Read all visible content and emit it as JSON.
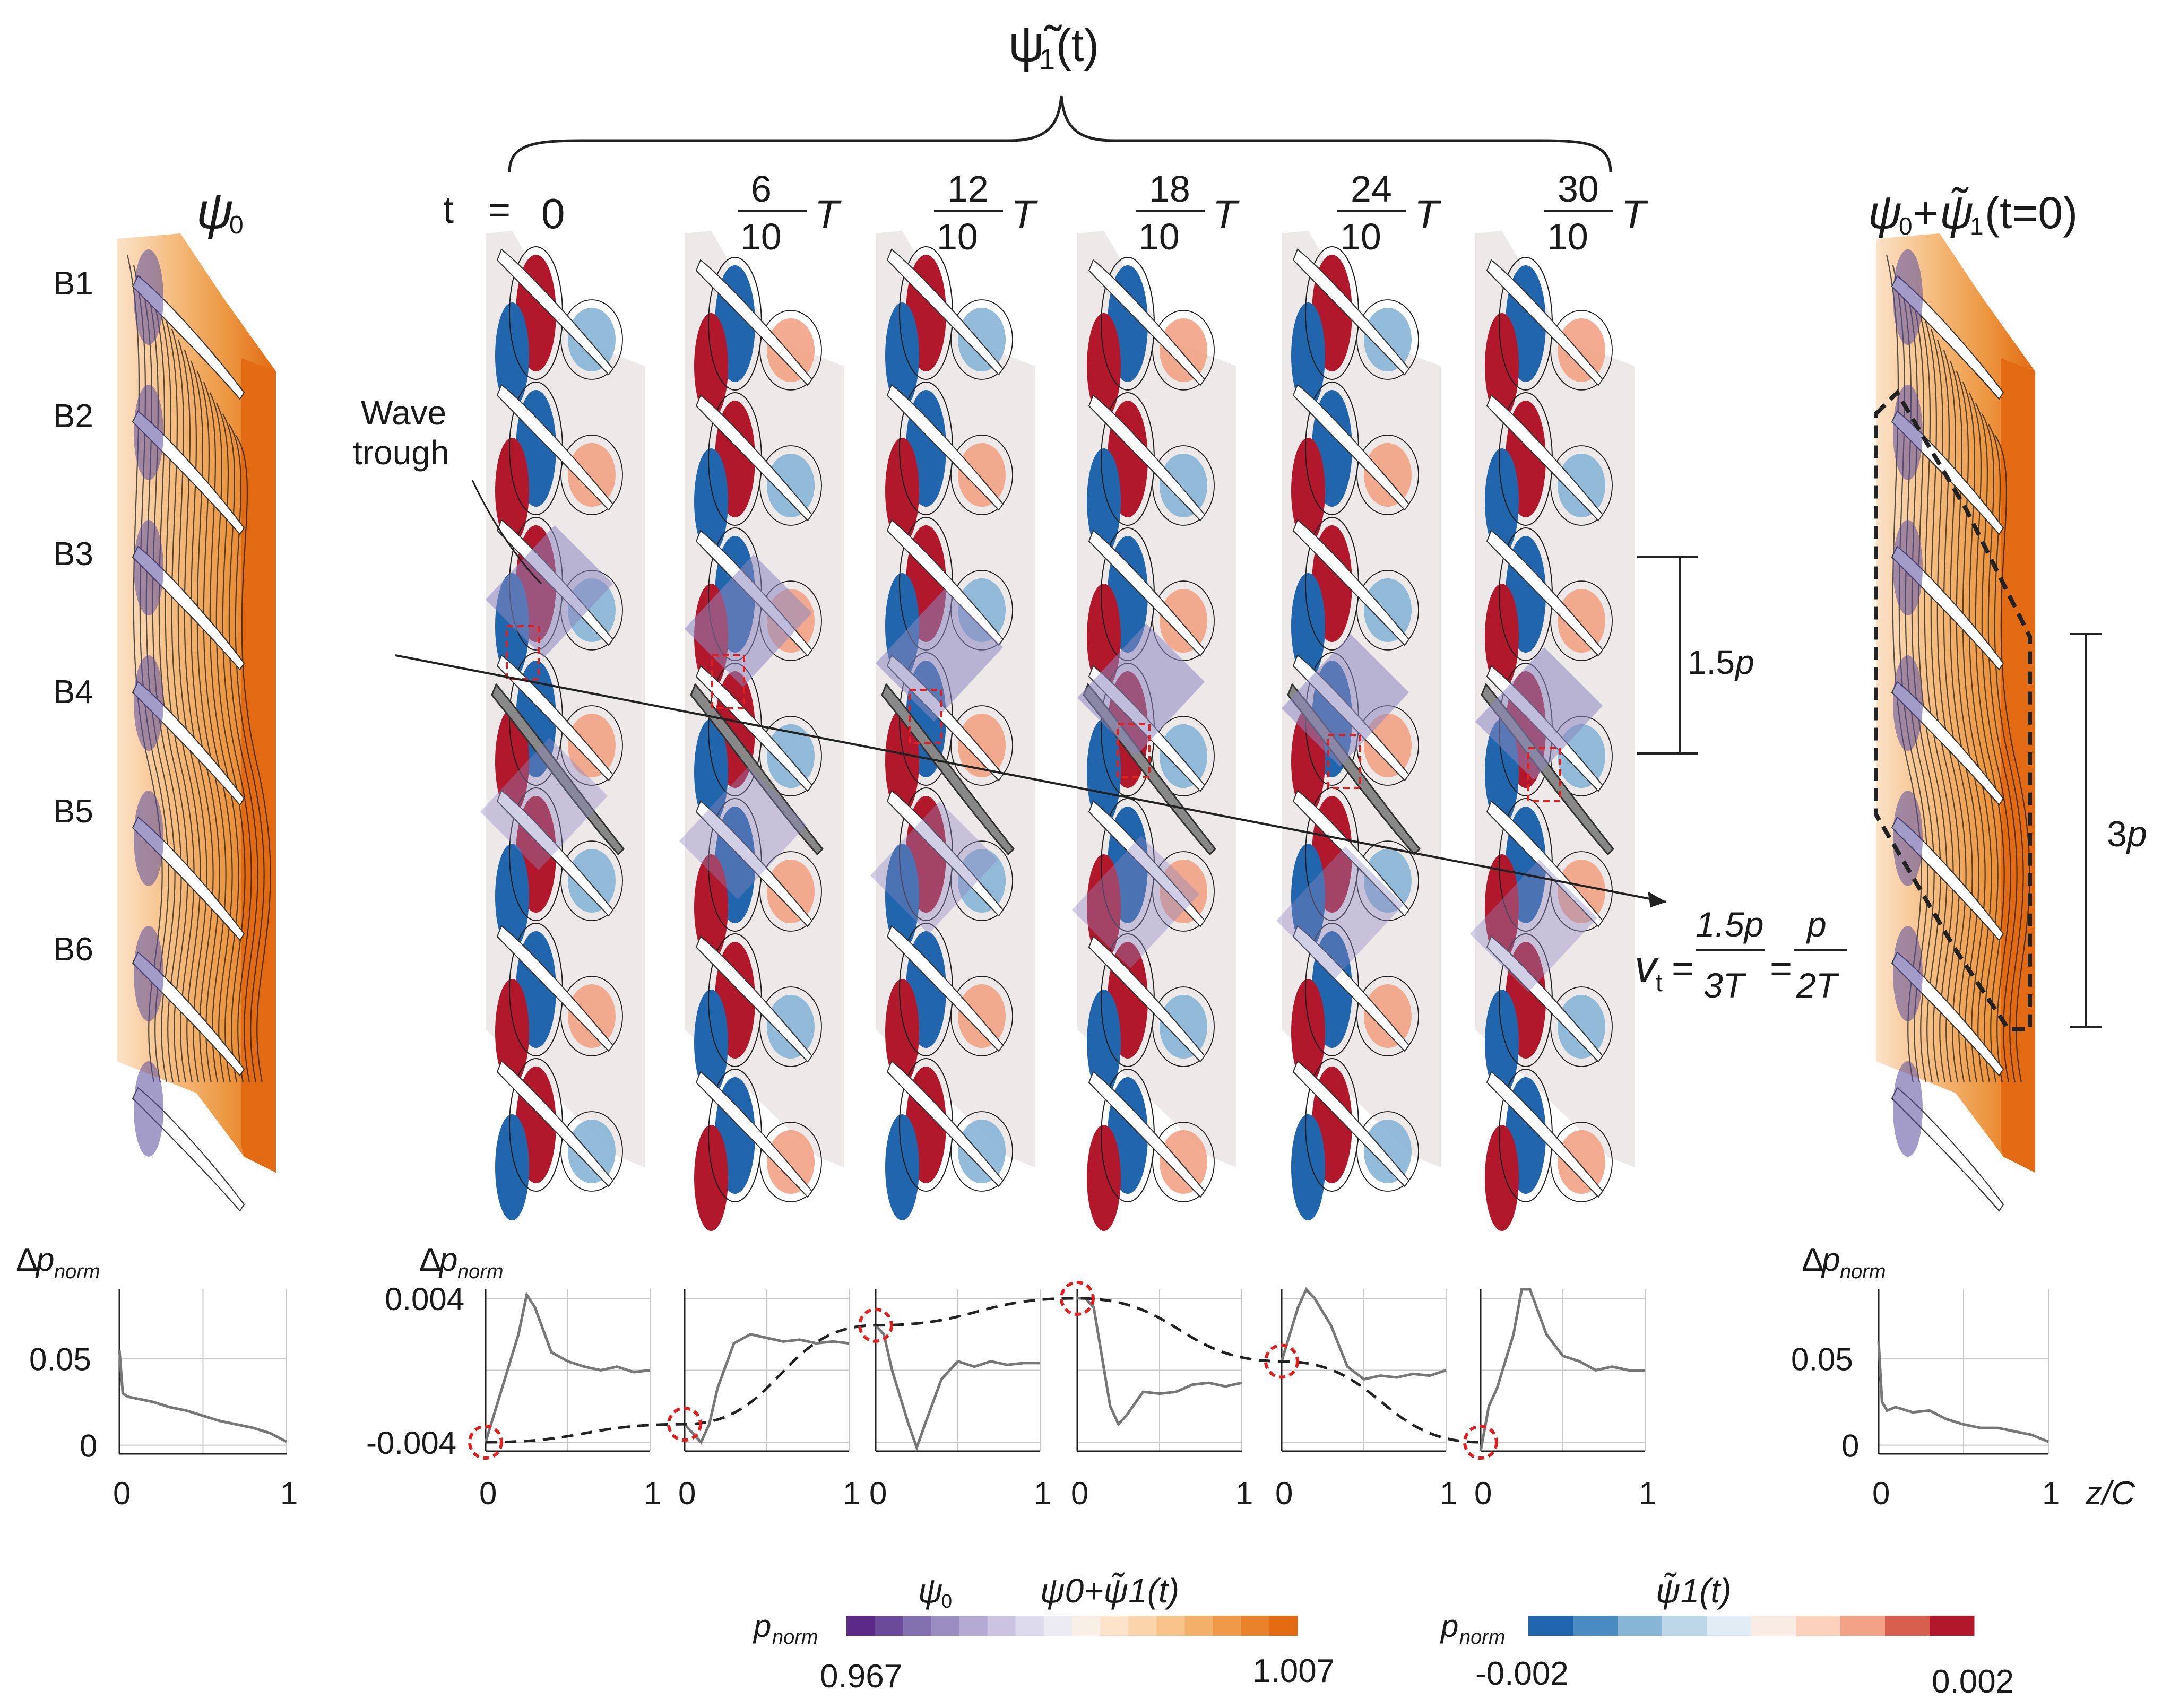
{
  "header": {
    "psi1_symbol": "ψ̃",
    "psi1_sub": "1",
    "psi1_arg": "(t)"
  },
  "left_panel": {
    "title_symbol": "ψ",
    "title_sub": "0",
    "blade_labels": [
      "B1",
      "B2",
      "B3",
      "B4",
      "B5",
      "B6"
    ]
  },
  "time_row": {
    "t_label": "t",
    "equals": "=",
    "fractions": [
      {
        "num": "",
        "den": "",
        "plain": "0"
      },
      {
        "num": "6",
        "den": "10",
        "unit": "T"
      },
      {
        "num": "12",
        "den": "10",
        "unit": "T"
      },
      {
        "num": "18",
        "den": "10",
        "unit": "T"
      },
      {
        "num": "24",
        "den": "10",
        "unit": "T"
      },
      {
        "num": "30",
        "den": "10",
        "unit": "T"
      }
    ]
  },
  "right_panel": {
    "title": "ψ0+ψ̃1(t=0)",
    "title_a": "ψ",
    "title_a_sub": "0",
    "title_plus": "+",
    "title_b": "ψ̃",
    "title_b_sub": "1",
    "title_arg": "(t=0)",
    "span_label": "3",
    "span_label_unit": "p"
  },
  "annotations": {
    "wave_trough": [
      "Wave",
      "trough"
    ],
    "span_15": "1.5",
    "span_15_unit": "p",
    "velocity_v": "v",
    "velocity_sub": "t",
    "velocity_eq1": "=",
    "velocity_num1": "1.5p",
    "velocity_den1": "3T",
    "velocity_eq2": "=",
    "velocity_num2": "p",
    "velocity_den2": "2T"
  },
  "line_plots": {
    "ylabel_delta": "Δ",
    "ylabel_p": "p",
    "ylabel_sub": "norm",
    "left_yticks": [
      "0.05",
      "0"
    ],
    "mid_yticks": [
      "0.004",
      "-0.004"
    ],
    "right_yticks": [
      "0.05",
      "0"
    ],
    "xticks": [
      "0",
      "1"
    ],
    "xlabel": "z/C"
  },
  "chart_data": [
    {
      "type": "line",
      "name": "ψ0 pressure",
      "xlabel": "z/C",
      "ylabel": "Δp_norm",
      "x": [
        0,
        0.02,
        0.05,
        0.1,
        0.2,
        0.3,
        0.4,
        0.5,
        0.6,
        0.7,
        0.8,
        0.9,
        1.0
      ],
      "y": [
        0.055,
        0.03,
        0.028,
        0.027,
        0.025,
        0.022,
        0.02,
        0.017,
        0.014,
        0.012,
        0.01,
        0.007,
        0.002
      ],
      "ylim": [
        -0.005,
        0.09
      ],
      "xlim": [
        0,
        1
      ]
    },
    {
      "type": "line",
      "name": "ψ̃1 pressure",
      "xlabel": "z/C",
      "ylabel": "Δp_norm",
      "panels": [
        {
          "t": "0",
          "x": [
            0,
            0.1,
            0.2,
            0.25,
            0.3,
            0.4,
            0.5,
            0.6,
            0.7,
            0.8,
            0.9,
            1.0
          ],
          "y": [
            -0.004,
            -0.001,
            0.002,
            0.0042,
            0.0035,
            0.001,
            0.0005,
            0.0002,
            0.0,
            0.0002,
            -0.0001,
            0.0
          ]
        },
        {
          "t": "6/10T",
          "x": [
            0,
            0.1,
            0.15,
            0.2,
            0.3,
            0.4,
            0.5,
            0.6,
            0.7,
            0.8,
            0.9,
            1.0
          ],
          "y": [
            -0.003,
            -0.004,
            -0.003,
            -0.001,
            0.0015,
            0.002,
            0.0018,
            0.0016,
            0.0017,
            0.0015,
            0.0016,
            0.0015
          ]
        },
        {
          "t": "12/10T",
          "x": [
            0,
            0.05,
            0.1,
            0.2,
            0.25,
            0.3,
            0.4,
            0.5,
            0.6,
            0.7,
            0.8,
            0.9,
            1.0
          ],
          "y": [
            0.0025,
            0.002,
            0.0,
            -0.003,
            -0.0043,
            -0.003,
            -0.0005,
            0.0005,
            0.0002,
            0.0005,
            0.0003,
            0.0004,
            0.0004
          ]
        },
        {
          "t": "18/10T",
          "x": [
            0,
            0.05,
            0.1,
            0.2,
            0.25,
            0.3,
            0.4,
            0.5,
            0.6,
            0.7,
            0.8,
            0.9,
            1.0
          ],
          "y": [
            0.004,
            0.004,
            0.0035,
            -0.002,
            -0.003,
            -0.0025,
            -0.0012,
            -0.0013,
            -0.0012,
            -0.0008,
            -0.0007,
            -0.0009,
            -0.0007
          ]
        },
        {
          "t": "24/10T",
          "x": [
            0,
            0.05,
            0.1,
            0.15,
            0.2,
            0.3,
            0.4,
            0.5,
            0.6,
            0.7,
            0.8,
            0.9,
            1.0
          ],
          "y": [
            0.0005,
            0.002,
            0.0035,
            0.0045,
            0.004,
            0.0025,
            0.0002,
            -0.0005,
            -0.0003,
            -0.0004,
            -0.0002,
            -0.0003,
            0.0
          ]
        },
        {
          "t": "30/10T",
          "x": [
            0,
            0.05,
            0.1,
            0.2,
            0.25,
            0.3,
            0.4,
            0.5,
            0.6,
            0.7,
            0.8,
            0.9,
            1.0
          ],
          "y": [
            -0.0045,
            -0.002,
            -0.001,
            0.002,
            0.0045,
            0.0045,
            0.002,
            0.0008,
            0.0005,
            0.0,
            0.0002,
            0.0,
            0.0
          ]
        }
      ],
      "phase_curve": {
        "description_visible": false,
        "y_at_panels": [
          -0.004,
          -0.003,
          0.0025,
          0.004,
          0.0005,
          -0.004
        ]
      },
      "ylim": [
        -0.0045,
        0.0045
      ],
      "xlim": [
        0,
        1
      ]
    },
    {
      "type": "line",
      "name": "ψ0+ψ̃1 pressure",
      "xlabel": "z/C",
      "ylabel": "Δp_norm",
      "x": [
        0,
        0.02,
        0.05,
        0.1,
        0.2,
        0.3,
        0.4,
        0.5,
        0.6,
        0.7,
        0.8,
        0.9,
        1.0
      ],
      "y": [
        0.06,
        0.025,
        0.02,
        0.022,
        0.019,
        0.02,
        0.015,
        0.012,
        0.01,
        0.01,
        0.008,
        0.006,
        0.002
      ],
      "ylim": [
        -0.005,
        0.09
      ],
      "xlim": [
        0,
        1
      ]
    }
  ],
  "colorbars": {
    "left": {
      "label_p": "p",
      "label_sub": "norm",
      "title_a": "ψ",
      "title_a_sub": "0",
      "title_b": "ψ0+ψ̃1(t)",
      "min": "0.967",
      "max": "1.007",
      "colors": [
        "#5a2a86",
        "#6b4a9a",
        "#8270b0",
        "#9a8dc2",
        "#b3aad4",
        "#cac4e2",
        "#dcdaec",
        "#ecebf3",
        "#f8f0e6",
        "#fbe2c8",
        "#fad4aa",
        "#f7c38a",
        "#f3b06a",
        "#ee9a4a",
        "#e8832c",
        "#e26a12"
      ]
    },
    "right": {
      "label_p": "p",
      "label_sub": "norm",
      "title": "ψ̃1(t)",
      "min": "-0.002",
      "max": "0.002",
      "colors": [
        "#2166ac",
        "#4a8bc2",
        "#86b5d6",
        "#bcd7e8",
        "#e1ecf4",
        "#f8ece5",
        "#fcd2bc",
        "#f2a385",
        "#d65f4e",
        "#b2182b"
      ]
    }
  },
  "colors": {
    "orange_dark": "#e26a12",
    "blue_dark": "#2166ac",
    "red_dark": "#b2182b",
    "purple_band": "#8c86c0",
    "dashed_red": "#e02020"
  }
}
